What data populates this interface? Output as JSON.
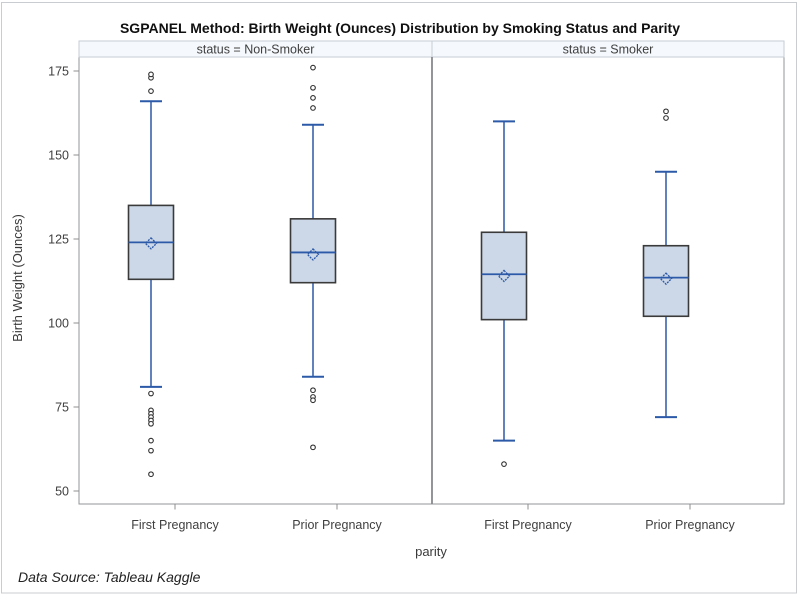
{
  "figure": {
    "title": "SGPANEL Method: Birth Weight (Ounces) Distribution by Smoking Status and Parity",
    "footnote": "Data Source: Tableau Kaggle"
  },
  "chart_data": {
    "type": "boxplot",
    "title": "SGPANEL Method: Birth Weight (Ounces) Distribution by Smoking Status and Parity",
    "xlabel": "parity",
    "ylabel": "Birth Weight (Ounces)",
    "footnote": "Data Source: Tableau Kaggle",
    "y_ticks": [
      50,
      75,
      100,
      125,
      150,
      175
    ],
    "ylim": [
      46,
      179
    ],
    "grid": false,
    "legend": "none",
    "categories": [
      "First Pregnancy",
      "Prior Pregnancy"
    ],
    "panels": [
      {
        "label": "status = Non-Smoker",
        "boxes": [
          {
            "category": "First Pregnancy",
            "whisker_low": 81,
            "q1": 113,
            "median": 124,
            "mean": 123.7,
            "q3": 135,
            "whisker_high": 166,
            "outliers_high": [
              169,
              173,
              174
            ],
            "outliers_low": [
              79,
              74,
              73,
              72,
              71,
              70,
              65,
              62,
              55
            ]
          },
          {
            "category": "Prior Pregnancy",
            "whisker_low": 84,
            "q1": 112,
            "median": 121,
            "mean": 120.4,
            "q3": 131,
            "whisker_high": 159,
            "outliers_high": [
              176,
              170,
              167,
              164
            ],
            "outliers_low": [
              80,
              78,
              77,
              63
            ]
          }
        ]
      },
      {
        "label": "status = Smoker",
        "boxes": [
          {
            "category": "First Pregnancy",
            "whisker_low": 65,
            "q1": 101,
            "median": 114.5,
            "mean": 114,
            "q3": 127,
            "whisker_high": 160,
            "outliers_high": [],
            "outliers_low": [
              58
            ]
          },
          {
            "category": "Prior Pregnancy",
            "whisker_low": 72,
            "q1": 102,
            "median": 113.5,
            "mean": 113.2,
            "q3": 123,
            "whisker_high": 145,
            "outliers_high": [
              163,
              161
            ],
            "outliers_low": []
          }
        ]
      }
    ],
    "colors": {
      "box_fill": "#ccd7e7",
      "box_border": "#3a3a3a",
      "line_blue": "#2c5aa8",
      "outlier_stroke": "#2f2f2f",
      "header_fill": "#f5f8fc",
      "header_border": "#c6ccd6",
      "frame": "#919599",
      "tick": "#8f8f8f",
      "figure_border": "#c9cdd1"
    }
  }
}
